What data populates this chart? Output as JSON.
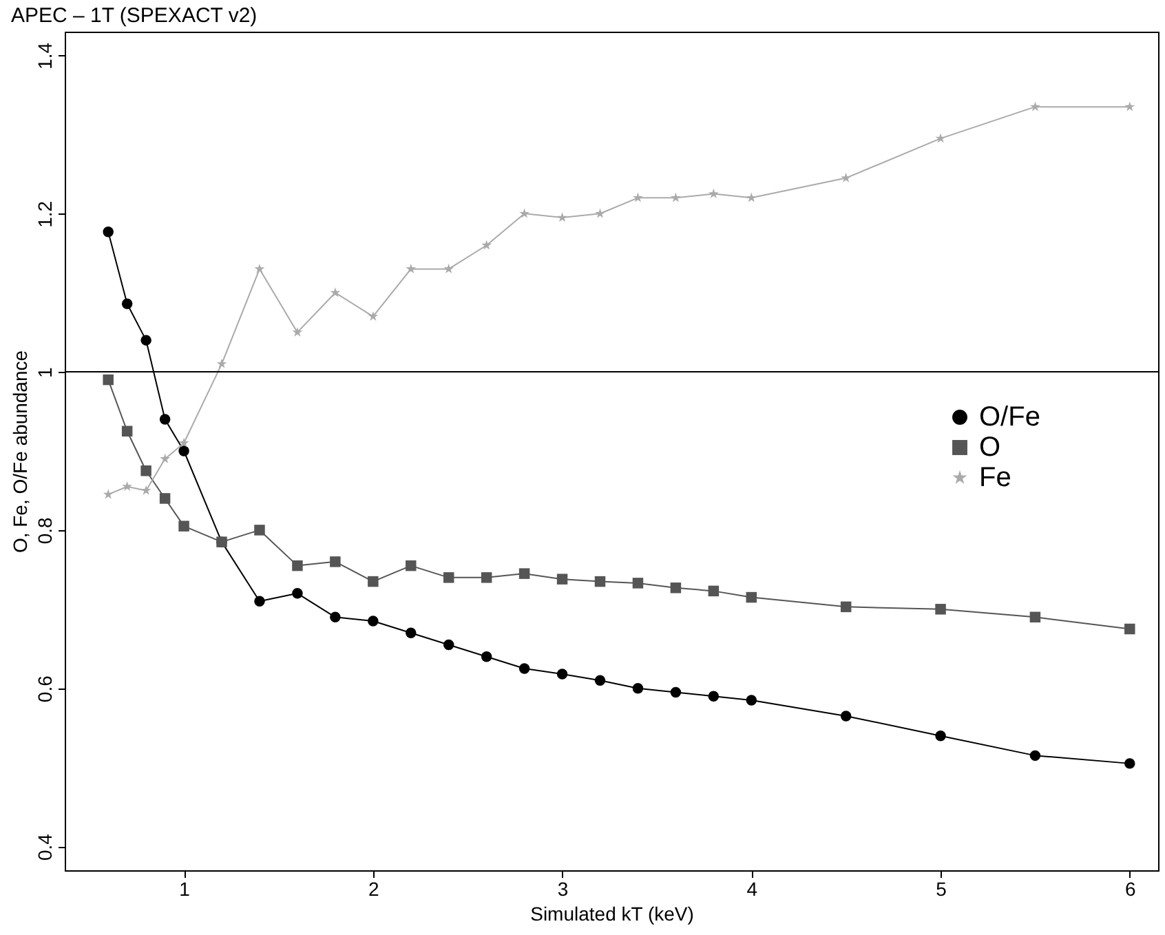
{
  "chart_data": {
    "type": "line",
    "title": "APEC – 1T (SPEXACT v2)",
    "xlabel": "Simulated kT (keV)",
    "ylabel": "O, Fe, O/Fe abundance",
    "x": [
      0.6,
      0.7,
      0.8,
      0.9,
      1.0,
      1.2,
      1.4,
      1.6,
      1.8,
      2.0,
      2.2,
      2.4,
      2.6,
      2.8,
      3.0,
      3.2,
      3.4,
      3.6,
      3.8,
      4.0,
      4.5,
      5.0,
      5.5,
      6.0
    ],
    "series": [
      {
        "name": "O/Fe",
        "color": "#000000",
        "marker": "circle",
        "values": [
          1.177,
          1.086,
          1.04,
          0.94,
          0.9,
          0.785,
          0.71,
          0.72,
          0.69,
          0.685,
          0.67,
          0.655,
          0.64,
          0.625,
          0.618,
          0.61,
          0.6,
          0.595,
          0.59,
          0.585,
          0.565,
          0.54,
          0.515,
          0.505
        ]
      },
      {
        "name": "O",
        "color": "#555555",
        "marker": "square",
        "values": [
          0.99,
          0.925,
          0.875,
          0.84,
          0.805,
          0.785,
          0.8,
          0.755,
          0.76,
          0.735,
          0.755,
          0.74,
          0.74,
          0.745,
          0.738,
          0.735,
          0.733,
          0.727,
          0.723,
          0.715,
          0.703,
          0.7,
          0.69,
          0.675
        ]
      },
      {
        "name": "Fe",
        "color": "#aaaaaa",
        "marker": "star",
        "values": [
          0.845,
          0.855,
          0.85,
          0.89,
          0.91,
          1.01,
          1.13,
          1.05,
          1.1,
          1.07,
          1.13,
          1.13,
          1.16,
          1.2,
          1.195,
          1.2,
          1.22,
          1.22,
          1.225,
          1.22,
          1.245,
          1.295,
          1.335,
          1.335
        ]
      }
    ],
    "xlim": [
      0.37,
      6.15
    ],
    "xticks": [
      1,
      2,
      3,
      4,
      5,
      6
    ],
    "ylim": [
      0.37,
      1.43
    ],
    "yticks": [
      0.4,
      0.6,
      0.8,
      1,
      1.2,
      1.4
    ],
    "ref_lines": [
      {
        "axis": "y",
        "value": 1,
        "color": "#000000"
      }
    ],
    "grid": false,
    "legend": "right"
  }
}
